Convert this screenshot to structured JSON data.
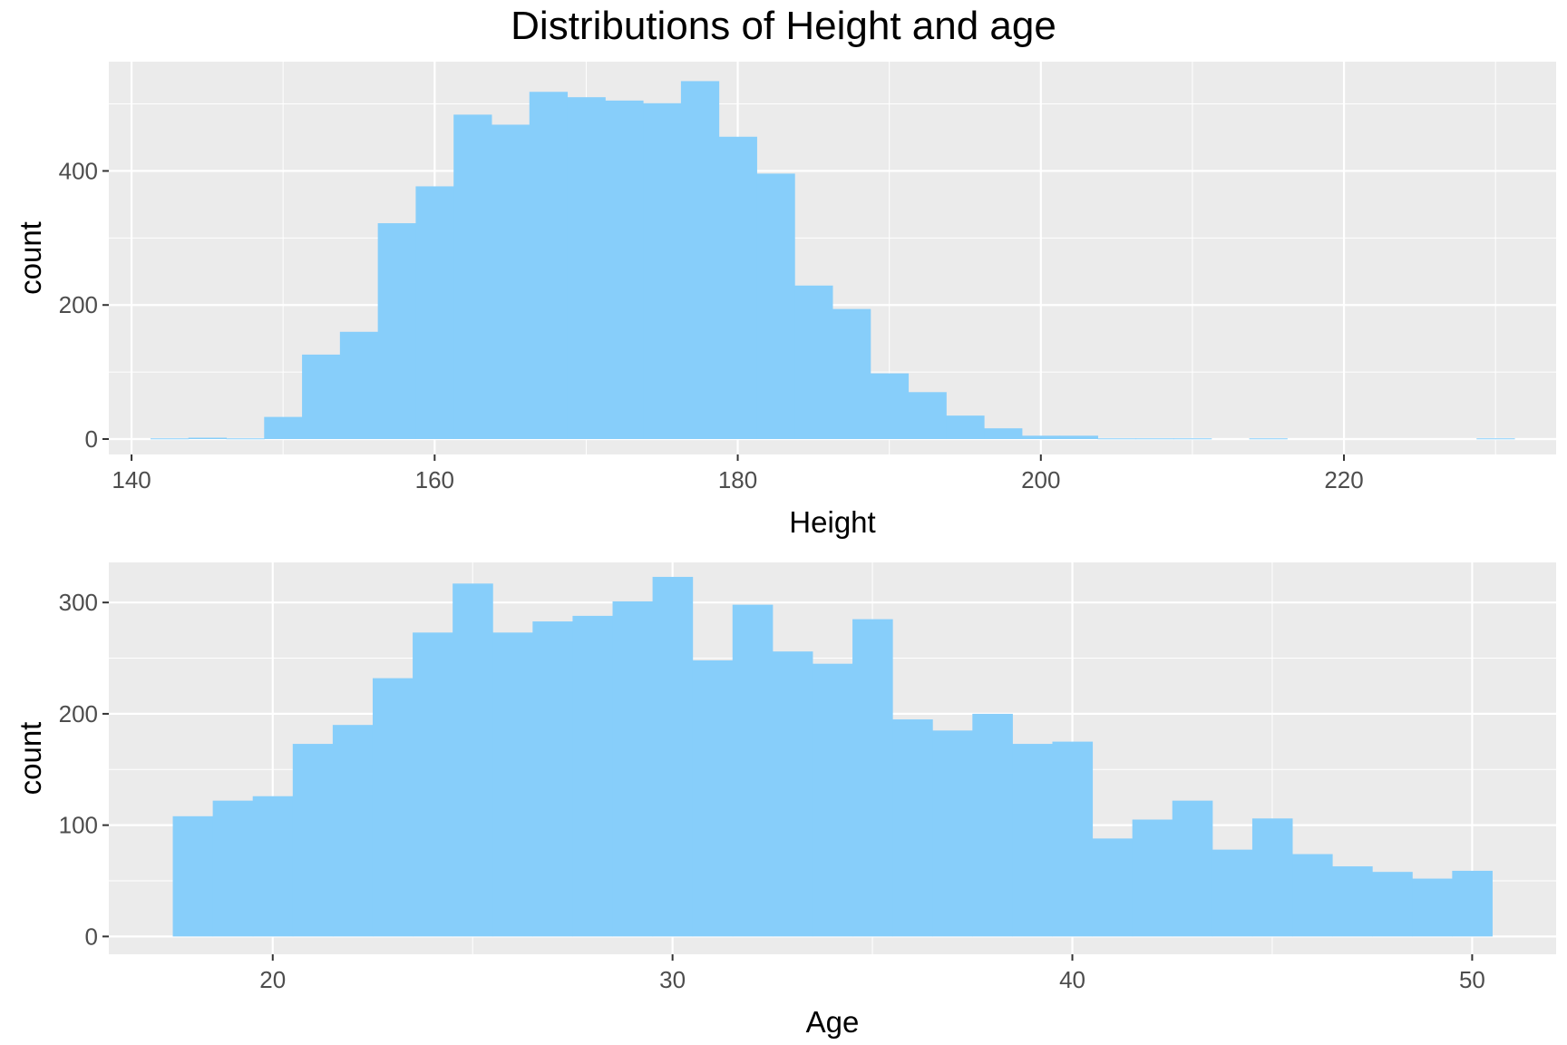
{
  "title": "Distributions of Height and age",
  "colors": {
    "panel_background": "#EBEBEB",
    "gridline": "#FFFFFF",
    "bar_fill": "#87CEFA",
    "axis_text": "#4D4D4D",
    "axis_title": "#000000"
  },
  "chart_data": [
    {
      "type": "bar",
      "histogram": true,
      "xlabel": "Height",
      "ylabel": "count",
      "xlim": [
        138.5,
        234
      ],
      "ylim": [
        -23,
        563
      ],
      "xticks": [
        140,
        160,
        180,
        200,
        220
      ],
      "yticks": [
        0,
        200,
        400
      ],
      "bin_width": 2.5,
      "bin_starts": [
        141.25,
        143.75,
        146.25,
        148.75,
        151.25,
        153.75,
        156.25,
        158.75,
        161.25,
        163.75,
        166.25,
        168.75,
        171.25,
        173.75,
        176.25,
        178.75,
        181.25,
        183.75,
        186.25,
        188.75,
        191.25,
        193.75,
        196.25,
        198.75,
        201.25,
        203.75,
        206.25,
        208.75,
        211.25,
        213.75,
        216.25,
        218.75,
        221.25,
        223.75,
        226.25,
        228.75
      ],
      "values": [
        1,
        2,
        1,
        33,
        126,
        160,
        322,
        377,
        484,
        469,
        518,
        510,
        505,
        501,
        534,
        451,
        396,
        229,
        194,
        98,
        70,
        35,
        16,
        5,
        5,
        1,
        1,
        1,
        0,
        1,
        0,
        0,
        0,
        0,
        0,
        1
      ],
      "grid": true
    },
    {
      "type": "bar",
      "histogram": true,
      "xlabel": "Age",
      "ylabel": "count",
      "xlim": [
        15.9,
        52.1
      ],
      "ylim": [
        -16,
        336
      ],
      "xticks": [
        20,
        30,
        40,
        50
      ],
      "yticks": [
        0,
        100,
        200,
        300
      ],
      "bin_width": 1,
      "bin_starts": [
        17.5,
        18.5,
        19.5,
        20.5,
        21.5,
        22.5,
        23.5,
        24.5,
        25.5,
        26.5,
        27.5,
        28.5,
        29.5,
        30.5,
        31.5,
        32.5,
        33.5,
        34.5,
        35.5,
        36.5,
        37.5,
        38.5,
        39.5,
        40.5,
        41.5,
        42.5,
        43.5,
        44.5,
        45.5,
        46.5,
        47.5,
        48.5,
        49.5
      ],
      "values": [
        108,
        122,
        126,
        173,
        190,
        232,
        273,
        317,
        273,
        283,
        288,
        301,
        323,
        248,
        298,
        256,
        245,
        285,
        195,
        185,
        200,
        173,
        175,
        88,
        105,
        122,
        78,
        106,
        74,
        63,
        58,
        52,
        59
      ],
      "grid": true
    }
  ]
}
